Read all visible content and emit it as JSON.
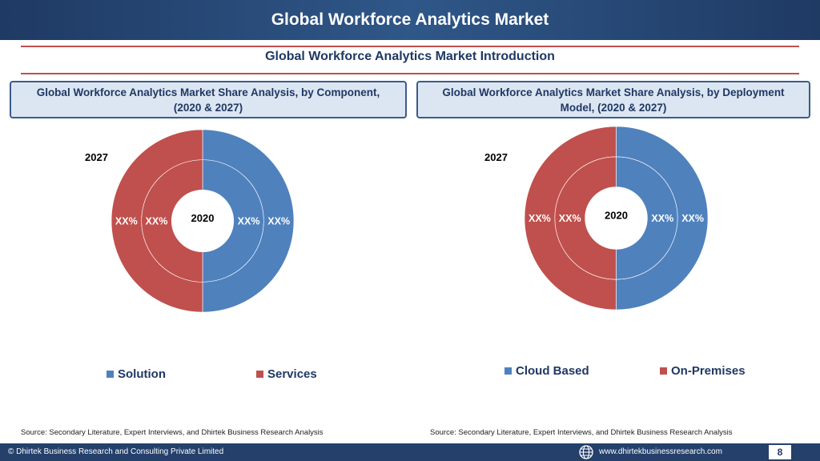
{
  "header": {
    "title": "Global Workforce Analytics Market"
  },
  "subtitle": "Global Workforce Analytics Market  Introduction",
  "colors": {
    "blue": "#4f81bd",
    "red": "#c0504d",
    "navy": "#1f3864"
  },
  "panels": [
    {
      "heading": "Global Workforce Analytics Market  Share Analysis, by Component, (2020 & 2027)",
      "outer_year": "2027",
      "inner_year": "2020",
      "legend": [
        "Solution",
        "Services"
      ],
      "source": "Source: Secondary Literature, Expert Interviews, and Dhirtek Business Research Analysis"
    },
    {
      "heading": "Global Workforce Analytics Market  Share Analysis, by Deployment Model, (2020 & 2027)",
      "outer_year": "2027",
      "inner_year": "2020",
      "legend": [
        "Cloud Based",
        "On-Premises"
      ],
      "source": "Source: Secondary Literature, Expert Interviews, and Dhirtek Business Research Analysis"
    }
  ],
  "chart_data": [
    {
      "type": "pie",
      "variant": "donut",
      "rings": [
        "2020",
        "2027"
      ],
      "categories": [
        "Solution",
        "Services"
      ],
      "series": [
        {
          "name": "2020",
          "values": [
            50,
            50
          ],
          "labels": [
            "XX%",
            "XX%"
          ]
        },
        {
          "name": "2027",
          "values": [
            50,
            50
          ],
          "labels": [
            "XX%",
            "XX%"
          ]
        }
      ],
      "legend_position": "bottom"
    },
    {
      "type": "pie",
      "variant": "donut",
      "rings": [
        "2020",
        "2027"
      ],
      "categories": [
        "Cloud Based",
        "On-Premises"
      ],
      "series": [
        {
          "name": "2020",
          "values": [
            50,
            50
          ],
          "labels": [
            "XX%",
            "XX%"
          ]
        },
        {
          "name": "2027",
          "values": [
            50,
            50
          ],
          "labels": [
            "XX%",
            "XX%"
          ]
        }
      ],
      "legend_position": "bottom"
    }
  ],
  "footer": {
    "copyright": "© Dhirtek Business Research and Consulting Private Limited",
    "website": "www.dhirtekbusinessresearch.com",
    "page": "8",
    "globe_icon": "globe-icon"
  }
}
